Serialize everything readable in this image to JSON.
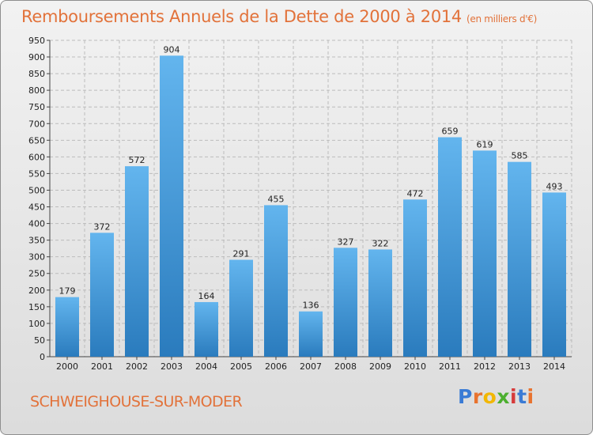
{
  "header": {
    "title": "Remboursements Annuels de la Dette de 2000 à 2014",
    "unit": "(en milliers d'€)"
  },
  "footer": {
    "place": "SCHWEIGHOUSE-SUR-MODER",
    "logo": [
      "P",
      "r",
      "o",
      "x",
      "i",
      "t",
      "i"
    ]
  },
  "colors": {
    "title": "#e2723a",
    "bar_light": "#63b5ee",
    "bar_dark": "#2a7bbd",
    "grid": "#bcbcbc",
    "logo": [
      "#3a7bd5",
      "#e8732f",
      "#f2b705",
      "#4caf2f",
      "#d63b3b",
      "#3a7bd5",
      "#e8732f"
    ]
  },
  "chart_data": {
    "type": "bar",
    "title": "Remboursements Annuels de la Dette de 2000 à 2014",
    "subtitle": "(en milliers d'€)",
    "xlabel": "",
    "ylabel": "",
    "categories": [
      "2000",
      "2001",
      "2002",
      "2003",
      "2004",
      "2005",
      "2006",
      "2007",
      "2008",
      "2009",
      "2010",
      "2011",
      "2012",
      "2013",
      "2014"
    ],
    "values": [
      179,
      372,
      572,
      904,
      164,
      291,
      455,
      136,
      327,
      322,
      472,
      659,
      619,
      585,
      493
    ],
    "ylim": [
      0,
      950
    ],
    "yticks": [
      0,
      50,
      100,
      150,
      200,
      250,
      300,
      350,
      400,
      450,
      500,
      550,
      600,
      650,
      700,
      750,
      800,
      850,
      900,
      950
    ],
    "grid": true,
    "legend": "none"
  }
}
